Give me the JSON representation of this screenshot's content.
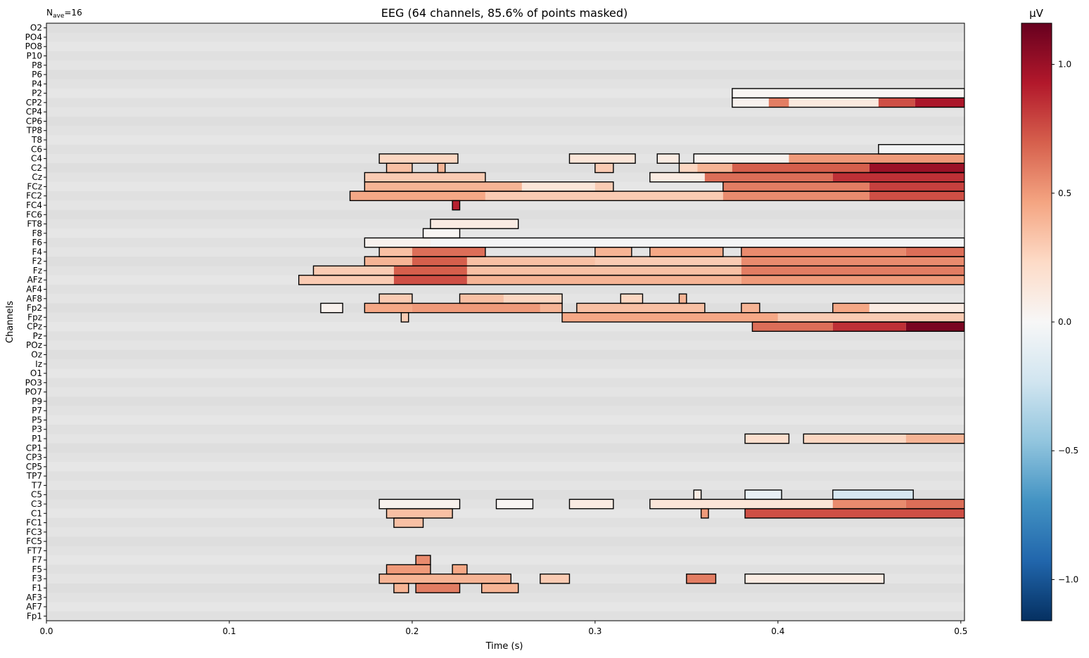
{
  "chart_data": {
    "type": "heatmap",
    "title": "EEG (64 channels, 85.6% of points masked)",
    "nave_label": "N",
    "nave_subscript": "ave",
    "nave_value": "=16",
    "xlabel": "Time (s)",
    "ylabel": "Channels",
    "colorbar_label": "µV",
    "xlim": [
      0.0,
      0.502
    ],
    "xticks": [
      0.0,
      0.1,
      0.2,
      0.3,
      0.4,
      0.5
    ],
    "xtick_labels": [
      "0.0",
      "0.1",
      "0.2",
      "0.3",
      "0.4",
      "0.5"
    ],
    "clim": [
      -1.16,
      1.16
    ],
    "cbar_ticks": [
      -1.0,
      -0.5,
      0.0,
      0.5,
      1.0
    ],
    "cbar_tick_labels": [
      "−1.0",
      "−0.5",
      "0.0",
      "0.5",
      "1.0"
    ],
    "colormap": "RdBu_r",
    "masked_color": "#dcdcdc",
    "channels": [
      "O2",
      "PO4",
      "PO8",
      "P10",
      "P8",
      "P6",
      "P4",
      "P2",
      "CP2",
      "CP4",
      "CP6",
      "TP8",
      "T8",
      "C6",
      "C4",
      "C2",
      "Cz",
      "FCz",
      "FC2",
      "FC4",
      "FC6",
      "FT8",
      "F8",
      "F6",
      "F4",
      "F2",
      "Fz",
      "AFz",
      "AF4",
      "AF8",
      "Fp2",
      "Fpz",
      "CPz",
      "Pz",
      "POz",
      "Oz",
      "Iz",
      "O1",
      "PO3",
      "PO7",
      "P9",
      "P7",
      "P5",
      "P3",
      "P1",
      "CP1",
      "CP3",
      "CP5",
      "TP7",
      "T7",
      "C5",
      "C3",
      "C1",
      "FC1",
      "FC3",
      "FC5",
      "FT7",
      "F7",
      "F5",
      "F3",
      "F1",
      "AF3",
      "AF7",
      "Fp1"
    ],
    "significant_regions": [
      {
        "channel": "P2",
        "segments": [
          [
            0.375,
            0.502,
            0.02
          ]
        ]
      },
      {
        "channel": "CP2",
        "segments": [
          [
            0.375,
            0.395,
            0.05
          ],
          [
            0.395,
            0.406,
            0.6
          ],
          [
            0.406,
            0.455,
            0.12
          ],
          [
            0.455,
            0.475,
            0.75
          ],
          [
            0.475,
            0.502,
            0.95
          ]
        ]
      },
      {
        "channel": "C6",
        "segments": [
          [
            0.455,
            0.502,
            -0.02
          ]
        ]
      },
      {
        "channel": "C4",
        "segments": [
          [
            0.182,
            0.225,
            0.25
          ],
          [
            0.286,
            0.322,
            0.15
          ],
          [
            0.334,
            0.346,
            0.1
          ],
          [
            0.354,
            0.406,
            0.05
          ],
          [
            0.406,
            0.502,
            0.5
          ]
        ]
      },
      {
        "channel": "C2",
        "segments": [
          [
            0.186,
            0.2,
            0.35
          ],
          [
            0.214,
            0.218,
            0.4
          ],
          [
            0.3,
            0.31,
            0.3
          ],
          [
            0.346,
            0.356,
            0.25
          ],
          [
            0.356,
            0.375,
            0.4
          ],
          [
            0.375,
            0.45,
            0.7
          ],
          [
            0.45,
            0.502,
            1.0
          ]
        ]
      },
      {
        "channel": "Cz",
        "segments": [
          [
            0.174,
            0.24,
            0.3
          ],
          [
            0.33,
            0.36,
            0.1
          ],
          [
            0.36,
            0.43,
            0.65
          ],
          [
            0.43,
            0.502,
            0.85
          ]
        ]
      },
      {
        "channel": "FCz",
        "segments": [
          [
            0.174,
            0.26,
            0.4
          ],
          [
            0.26,
            0.3,
            0.15
          ],
          [
            0.3,
            0.31,
            0.3
          ],
          [
            0.37,
            0.45,
            0.6
          ],
          [
            0.45,
            0.502,
            0.8
          ]
        ]
      },
      {
        "channel": "FC2",
        "segments": [
          [
            0.166,
            0.24,
            0.45
          ],
          [
            0.24,
            0.37,
            0.3
          ],
          [
            0.37,
            0.45,
            0.55
          ],
          [
            0.45,
            0.502,
            0.75
          ]
        ]
      },
      {
        "channel": "FC4",
        "segments": [
          [
            0.222,
            0.226,
            0.9
          ]
        ]
      },
      {
        "channel": "FT8",
        "segments": [
          [
            0.21,
            0.258,
            0.1
          ]
        ]
      },
      {
        "channel": "F8",
        "segments": [
          [
            0.206,
            0.226,
            0.02
          ]
        ]
      },
      {
        "channel": "F6",
        "segments": [
          [
            0.174,
            0.21,
            0.05
          ],
          [
            0.21,
            0.502,
            -0.02
          ]
        ]
      },
      {
        "channel": "F4",
        "segments": [
          [
            0.182,
            0.2,
            0.35
          ],
          [
            0.2,
            0.24,
            0.65
          ],
          [
            0.3,
            0.32,
            0.4
          ],
          [
            0.33,
            0.37,
            0.45
          ],
          [
            0.38,
            0.47,
            0.55
          ],
          [
            0.47,
            0.502,
            0.65
          ]
        ]
      },
      {
        "channel": "F2",
        "segments": [
          [
            0.174,
            0.2,
            0.4
          ],
          [
            0.2,
            0.23,
            0.7
          ],
          [
            0.23,
            0.3,
            0.35
          ],
          [
            0.3,
            0.38,
            0.3
          ],
          [
            0.38,
            0.502,
            0.55
          ]
        ]
      },
      {
        "channel": "Fz",
        "segments": [
          [
            0.146,
            0.19,
            0.3
          ],
          [
            0.19,
            0.23,
            0.7
          ],
          [
            0.23,
            0.38,
            0.35
          ],
          [
            0.38,
            0.502,
            0.6
          ]
        ]
      },
      {
        "channel": "AFz",
        "segments": [
          [
            0.138,
            0.19,
            0.3
          ],
          [
            0.19,
            0.23,
            0.75
          ],
          [
            0.23,
            0.38,
            0.4
          ],
          [
            0.38,
            0.502,
            0.5
          ]
        ]
      },
      {
        "channel": "AF8",
        "segments": [
          [
            0.182,
            0.2,
            0.3
          ],
          [
            0.226,
            0.25,
            0.35
          ],
          [
            0.25,
            0.282,
            0.25
          ],
          [
            0.314,
            0.326,
            0.25
          ],
          [
            0.346,
            0.35,
            0.4
          ]
        ]
      },
      {
        "channel": "Fp2",
        "segments": [
          [
            0.15,
            0.162,
            0.05
          ],
          [
            0.174,
            0.2,
            0.45
          ],
          [
            0.2,
            0.27,
            0.5
          ],
          [
            0.27,
            0.282,
            0.4
          ],
          [
            0.29,
            0.36,
            0.35
          ],
          [
            0.38,
            0.39,
            0.4
          ],
          [
            0.43,
            0.45,
            0.45
          ],
          [
            0.45,
            0.502,
            0.1
          ]
        ]
      },
      {
        "channel": "Fpz",
        "segments": [
          [
            0.194,
            0.198,
            0.3
          ],
          [
            0.282,
            0.4,
            0.45
          ],
          [
            0.4,
            0.502,
            0.3
          ]
        ]
      },
      {
        "channel": "CPz",
        "segments": [
          [
            0.386,
            0.43,
            0.65
          ],
          [
            0.43,
            0.47,
            0.85
          ],
          [
            0.47,
            0.502,
            1.1
          ]
        ]
      },
      {
        "channel": "P1",
        "segments": [
          [
            0.382,
            0.406,
            0.2
          ],
          [
            0.414,
            0.47,
            0.25
          ],
          [
            0.47,
            0.502,
            0.4
          ]
        ]
      },
      {
        "channel": "C5",
        "segments": [
          [
            0.354,
            0.358,
            0.1
          ],
          [
            0.382,
            0.402,
            -0.1
          ],
          [
            0.43,
            0.474,
            -0.2
          ]
        ]
      },
      {
        "channel": "C3",
        "segments": [
          [
            0.182,
            0.226,
            0.05
          ],
          [
            0.246,
            0.266,
            0.02
          ],
          [
            0.286,
            0.31,
            0.1
          ],
          [
            0.33,
            0.43,
            0.15
          ],
          [
            0.43,
            0.47,
            0.55
          ],
          [
            0.47,
            0.502,
            0.65
          ]
        ]
      },
      {
        "channel": "C1",
        "segments": [
          [
            0.186,
            0.222,
            0.35
          ],
          [
            0.358,
            0.362,
            0.5
          ],
          [
            0.382,
            0.502,
            0.75
          ]
        ]
      },
      {
        "channel": "FC1",
        "segments": [
          [
            0.19,
            0.206,
            0.35
          ]
        ]
      },
      {
        "channel": "F7",
        "segments": [
          [
            0.202,
            0.21,
            0.55
          ]
        ]
      },
      {
        "channel": "F5",
        "segments": [
          [
            0.186,
            0.21,
            0.5
          ],
          [
            0.222,
            0.23,
            0.45
          ]
        ]
      },
      {
        "channel": "F3",
        "segments": [
          [
            0.182,
            0.254,
            0.4
          ],
          [
            0.27,
            0.286,
            0.3
          ],
          [
            0.35,
            0.366,
            0.6
          ],
          [
            0.382,
            0.458,
            0.1
          ]
        ]
      },
      {
        "channel": "F1",
        "segments": [
          [
            0.19,
            0.198,
            0.4
          ],
          [
            0.202,
            0.226,
            0.6
          ],
          [
            0.238,
            0.258,
            0.4
          ]
        ]
      }
    ]
  }
}
